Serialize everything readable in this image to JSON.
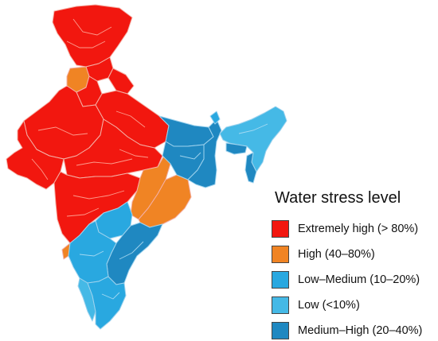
{
  "colors": {
    "extremely_high": "#f2170f",
    "high": "#f08424",
    "low_medium": "#29a8e0",
    "low": "#45b9e6",
    "medium_high": "#1f88c1"
  },
  "legend": {
    "title": "Water stress level",
    "items": [
      {
        "key": "extremely_high",
        "label": "Extremely high (> 80%)",
        "color": "#f2170f"
      },
      {
        "key": "high",
        "label": "High (40–80%)",
        "color": "#f08424"
      },
      {
        "key": "low_medium",
        "label": "Low–Medium (10–20%)",
        "color": "#29a8e0"
      },
      {
        "key": "low",
        "label": "Low (<10%)",
        "color": "#45b9e6"
      },
      {
        "key": "medium_high",
        "label": "Medium–High (20–40%)",
        "color": "#1f88c1"
      }
    ]
  },
  "map": {
    "regions": [
      {
        "name": "jammu-kashmir",
        "level": "extremely_high"
      },
      {
        "name": "himachal-pradesh",
        "level": "extremely_high"
      },
      {
        "name": "punjab",
        "level": "high"
      },
      {
        "name": "uttarakhand",
        "level": "extremely_high"
      },
      {
        "name": "haryana",
        "level": "extremely_high"
      },
      {
        "name": "uttar-pradesh",
        "level": "extremely_high"
      },
      {
        "name": "rajasthan",
        "level": "extremely_high"
      },
      {
        "name": "gujarat",
        "level": "extremely_high"
      },
      {
        "name": "madhya-pradesh",
        "level": "extremely_high"
      },
      {
        "name": "maharashtra",
        "level": "extremely_high"
      },
      {
        "name": "bihar",
        "level": "medium_high"
      },
      {
        "name": "jharkhand",
        "level": "medium_high"
      },
      {
        "name": "west-bengal",
        "level": "medium_high"
      },
      {
        "name": "chhattisgarh",
        "level": "high"
      },
      {
        "name": "odisha",
        "level": "high"
      },
      {
        "name": "telangana",
        "level": "low_medium"
      },
      {
        "name": "andhra-pradesh",
        "level": "medium_high"
      },
      {
        "name": "karnataka",
        "level": "low_medium"
      },
      {
        "name": "goa",
        "level": "high"
      },
      {
        "name": "tamil-nadu",
        "level": "low_medium"
      },
      {
        "name": "kerala",
        "level": "low"
      },
      {
        "name": "sikkim",
        "level": "low_medium"
      },
      {
        "name": "northeast",
        "level": "low"
      },
      {
        "name": "meghalaya",
        "level": "medium_high"
      },
      {
        "name": "tripura-mizoram",
        "level": "medium_high"
      }
    ]
  }
}
